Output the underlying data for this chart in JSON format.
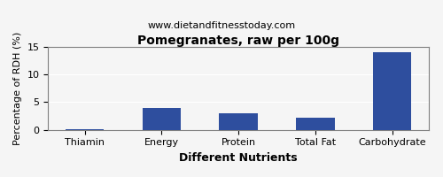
{
  "title": "Pomegranates, raw per 100g",
  "subtitle": "www.dietandfitnesstoday.com",
  "xlabel": "Different Nutrients",
  "ylabel": "Percentage of RDH (%)",
  "categories": [
    "Thiamin",
    "Energy",
    "Protein",
    "Total Fat",
    "Carbohydrate"
  ],
  "values": [
    0.05,
    4.0,
    3.0,
    2.2,
    14.0
  ],
  "bar_color": "#2e4e9e",
  "ylim": [
    0,
    15
  ],
  "yticks": [
    0,
    5,
    10,
    15
  ],
  "background_color": "#f5f5f5",
  "title_fontsize": 10,
  "subtitle_fontsize": 8,
  "xlabel_fontsize": 9,
  "ylabel_fontsize": 8,
  "tick_fontsize": 8
}
